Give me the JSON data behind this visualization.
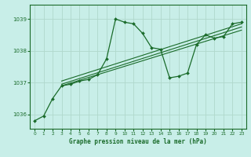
{
  "title": "Graphe pression niveau de la mer (hPa)",
  "background_color": "#c8eee8",
  "grid_color": "#b0d8cc",
  "line_color": "#1a6b2a",
  "xlim": [
    -0.5,
    23.5
  ],
  "ylim": [
    1035.55,
    1039.45
  ],
  "yticks": [
    1036,
    1037,
    1038,
    1039
  ],
  "xticks": [
    0,
    1,
    2,
    3,
    4,
    5,
    6,
    7,
    8,
    9,
    10,
    11,
    12,
    13,
    14,
    15,
    16,
    17,
    18,
    19,
    20,
    21,
    22,
    23
  ],
  "main_series": [
    1035.8,
    1035.95,
    1036.5,
    1036.9,
    1036.95,
    1037.05,
    1037.1,
    1037.25,
    1037.75,
    1039.0,
    1038.9,
    1038.85,
    1038.55,
    1038.1,
    1038.05,
    1037.15,
    1037.2,
    1037.3,
    1038.2,
    1038.5,
    1038.4,
    1038.45,
    1038.85,
    1038.9
  ],
  "trend1_x": [
    3,
    23
  ],
  "trend1_y": [
    1036.9,
    1038.65
  ],
  "trend2_x": [
    3,
    23
  ],
  "trend2_y": [
    1036.95,
    1038.75
  ],
  "trend3_x": [
    3,
    23
  ],
  "trend3_y": [
    1037.05,
    1038.85
  ]
}
